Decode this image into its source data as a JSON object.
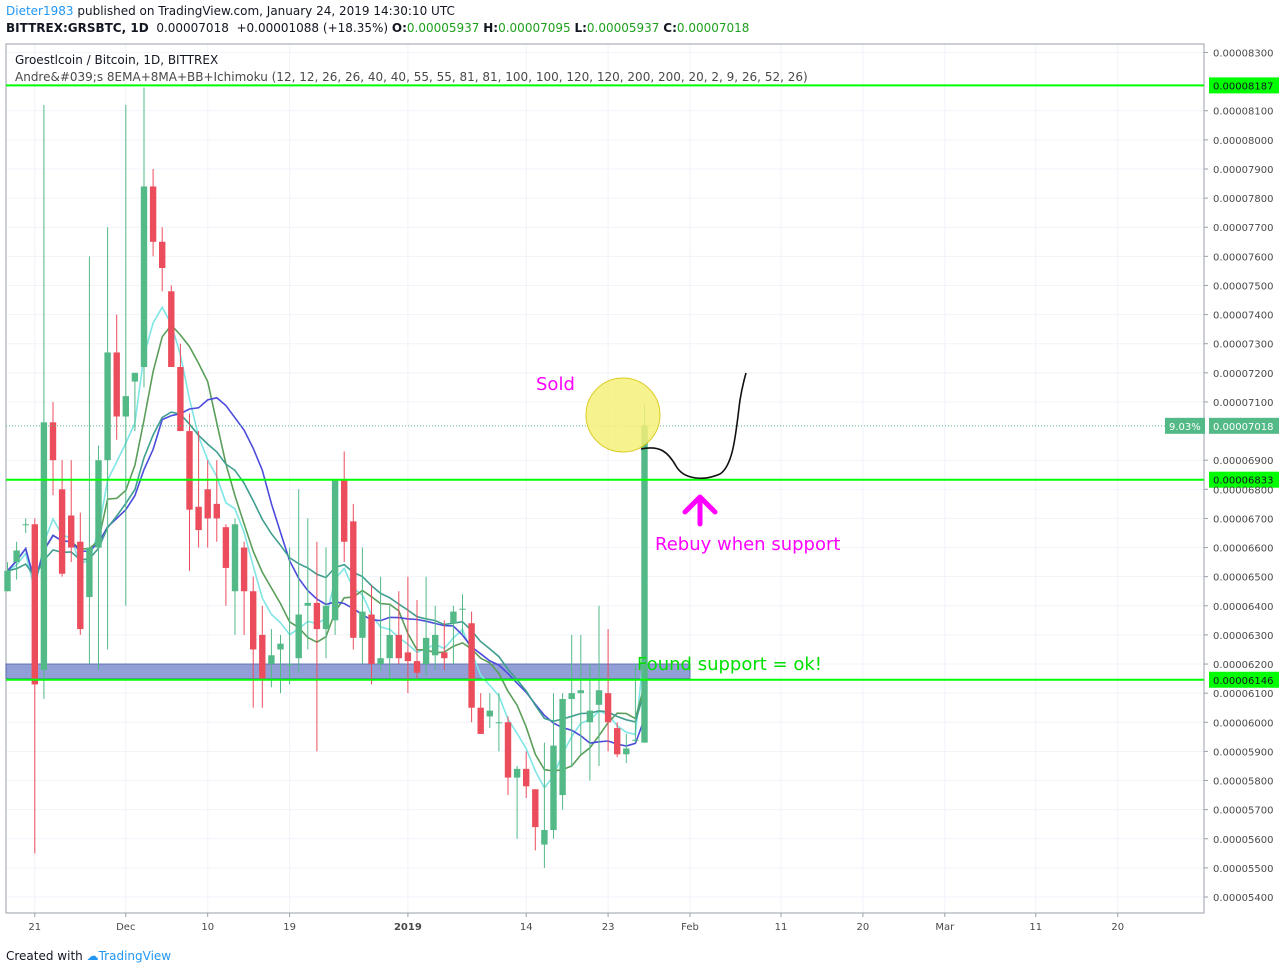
{
  "header": {
    "user": "Dieter1983",
    "published_text": "published on TradingView.com, January 24, 2019 14:30:10 UTC",
    "symbol": "BITTREX:GRSBTC, 1D",
    "last": "0.00007018",
    "change": "+0.00001088 (+18.35%)",
    "o_label": "O:",
    "o_value": "0.00005937",
    "h_label": "H:",
    "h_value": "0.00007095",
    "l_label": "L:",
    "l_value": "0.00005937",
    "c_label": "C:",
    "c_value": "0.00007018"
  },
  "legend": {
    "title": "Groestlcoin / Bitcoin, 1D, BITTREX",
    "indicator": "Andre&#039;s 8EMA+8MA+BB+Ichimoku (12, 12, 26, 26, 40, 40, 55, 55, 81, 81, 100, 100, 120, 120, 200, 200, 20, 2, 9, 26, 52, 26)"
  },
  "footer": {
    "created_with": "Created with",
    "brand": "TradingView"
  },
  "colors": {
    "up": "#53b987",
    "down": "#eb4d5c",
    "support_line": "#00ff00",
    "ema_fast": "#7fe5e5",
    "ema_mid": "#5a9e5a",
    "ma_blue": "#4b4bdc",
    "ma_teal": "#3f9e8f",
    "annotation_magenta": "#ff00ff",
    "annotation_green": "#00e000",
    "circle_fill": "#f5f07a",
    "zone_fill": "#7f8fd0"
  },
  "chart_data": {
    "type": "candlestick",
    "y_axis": {
      "range": [
        5.36e-05,
        8.37e-05
      ],
      "ticks": [
        "0.00008300",
        "0.00008100",
        "0.00008000",
        "0.00007900",
        "0.00007800",
        "0.00007700",
        "0.00007600",
        "0.00007500",
        "0.00007400",
        "0.00007300",
        "0.00007200",
        "0.00007100",
        "0.00006900",
        "0.00006800",
        "0.00006700",
        "0.00006600",
        "0.00006500",
        "0.00006400",
        "0.00006300",
        "0.00006200",
        "0.00006100",
        "0.00006000",
        "0.00005900",
        "0.00005800",
        "0.00005700",
        "0.00005600",
        "0.00005500",
        "0.00005400"
      ],
      "tick_values": [
        8.3e-05,
        8.1e-05,
        8e-05,
        7.9e-05,
        7.8e-05,
        7.7e-05,
        7.6e-05,
        7.5e-05,
        7.4e-05,
        7.3e-05,
        7.2e-05,
        7.1e-05,
        6.9e-05,
        6.8e-05,
        6.7e-05,
        6.6e-05,
        6.5e-05,
        6.4e-05,
        6.3e-05,
        6.2e-05,
        6.1e-05,
        6e-05,
        5.9e-05,
        5.8e-05,
        5.7e-05,
        5.6e-05,
        5.5e-05,
        5.4e-05
      ]
    },
    "x_axis": {
      "ticks": [
        {
          "label": "21",
          "index": 3
        },
        {
          "label": "Dec",
          "index": 13,
          "bold": false
        },
        {
          "label": "10",
          "index": 22
        },
        {
          "label": "19",
          "index": 31
        },
        {
          "label": "2019",
          "index": 44,
          "bold": true
        },
        {
          "label": "14",
          "index": 57
        },
        {
          "label": "23",
          "index": 66
        },
        {
          "label": "Feb",
          "index": 75
        },
        {
          "label": "11",
          "index": 85
        },
        {
          "label": "20",
          "index": 94
        },
        {
          "label": "Mar",
          "index": 103
        },
        {
          "label": "11",
          "index": 113
        },
        {
          "label": "20",
          "index": 122
        }
      ]
    },
    "price_labels": [
      {
        "text": "0.00008187",
        "value": 8.187e-05,
        "kind": "line"
      },
      {
        "text": "0.00006833",
        "value": 6.833e-05,
        "kind": "line"
      },
      {
        "text": "0.00006146",
        "value": 6.146e-05,
        "kind": "line"
      },
      {
        "text": "0.00007018",
        "value": 7.018e-05,
        "kind": "last",
        "pct": "9.03%"
      }
    ],
    "candles": [
      [
        6.45e-05,
        6.55e-05,
        6.45e-05,
        6.52e-05
      ],
      [
        6.55e-05,
        6.62e-05,
        6.49e-05,
        6.59e-05
      ],
      [
        6.68e-05,
        6.7e-05,
        6.65e-05,
        6.68e-05
      ],
      [
        6.68e-05,
        6.7e-05,
        5.55e-05,
        6.13e-05
      ],
      [
        6.18e-05,
        8.12e-05,
        6.08e-05,
        7.03e-05
      ],
      [
        7.03e-05,
        7.1e-05,
        6.78e-05,
        6.9e-05
      ],
      [
        6.8e-05,
        6.9e-05,
        6.5e-05,
        6.51e-05
      ],
      [
        6.71e-05,
        6.9e-05,
        6.55e-05,
        6.6e-05
      ],
      [
        6.62e-05,
        6.72e-05,
        6.3e-05,
        6.32e-05
      ],
      [
        6.43e-05,
        7.6e-05,
        6.2e-05,
        6.6e-05
      ],
      [
        6.6e-05,
        6.95e-05,
        6.18e-05,
        6.9e-05
      ],
      [
        6.9e-05,
        7.7e-05,
        6.25e-05,
        7.27e-05
      ],
      [
        7.27e-05,
        7.4e-05,
        6.97e-05,
        7.05e-05
      ],
      [
        7.05e-05,
        8.12e-05,
        6.4e-05,
        7.12e-05
      ],
      [
        7.17e-05,
        7.2e-05,
        7e-05,
        7.2e-05
      ],
      [
        7.22e-05,
        8.18e-05,
        7.15e-05,
        7.84e-05
      ],
      [
        7.84e-05,
        7.9e-05,
        7.6e-05,
        7.65e-05
      ],
      [
        7.65e-05,
        7.7e-05,
        7.48e-05,
        7.56e-05
      ],
      [
        7.48e-05,
        7.5e-05,
        7.22e-05,
        7.22e-05
      ],
      [
        7.22e-05,
        7.3e-05,
        7e-05,
        7e-05
      ],
      [
        7e-05,
        7.06e-05,
        6.52e-05,
        6.73e-05
      ],
      [
        6.74e-05,
        7e-05,
        6.6e-05,
        6.66e-05
      ],
      [
        6.8e-05,
        6.9e-05,
        6.6e-05,
        6.7e-05
      ],
      [
        6.75e-05,
        6.9e-05,
        6.62e-05,
        6.7e-05
      ],
      [
        6.67e-05,
        6.68e-05,
        6.4e-05,
        6.53e-05
      ],
      [
        6.45e-05,
        6.7e-05,
        6.3e-05,
        6.68e-05
      ],
      [
        6.6e-05,
        6.62e-05,
        6.3e-05,
        6.45e-05
      ],
      [
        6.45e-05,
        6.5e-05,
        6.05e-05,
        6.25e-05
      ],
      [
        6.3e-05,
        6.4e-05,
        6.05e-05,
        6.15e-05
      ],
      [
        6.2e-05,
        6.32e-05,
        6.12e-05,
        6.23e-05
      ],
      [
        6.25e-05,
        6.3e-05,
        6.1e-05,
        6.27e-05
      ],
      [
        6.2e-05,
        6.6e-05,
        6.13e-05,
        6.2e-05
      ],
      [
        6.22e-05,
        6.8e-05,
        6.17e-05,
        6.37e-05
      ],
      [
        6.4e-05,
        6.7e-05,
        6.25e-05,
        6.41e-05
      ],
      [
        6.41e-05,
        6.62e-05,
        5.9e-05,
        6.32e-05
      ],
      [
        6.32e-05,
        6.6e-05,
        6.22e-05,
        6.4e-05
      ],
      [
        6.35e-05,
        6.83e-05,
        6.3e-05,
        6.83e-05
      ],
      [
        6.83e-05,
        6.93e-05,
        6.55e-05,
        6.62e-05
      ],
      [
        6.69e-05,
        6.75e-05,
        6.25e-05,
        6.29e-05
      ],
      [
        6.29e-05,
        6.6e-05,
        6.2e-05,
        6.38e-05
      ],
      [
        6.37e-05,
        6.47e-05,
        6.13e-05,
        6.2e-05
      ],
      [
        6.2e-05,
        6.5e-05,
        6.18e-05,
        6.22e-05
      ],
      [
        6.22e-05,
        6.4e-05,
        6.15e-05,
        6.3e-05
      ],
      [
        6.3e-05,
        6.45e-05,
        6.2e-05,
        6.22e-05
      ],
      [
        6.24e-05,
        6.5e-05,
        6.1e-05,
        6.21e-05
      ],
      [
        6.21e-05,
        6.42e-05,
        6.15e-05,
        6.17e-05
      ],
      [
        6.2e-05,
        6.5e-05,
        6.16e-05,
        6.29e-05
      ],
      [
        6.23e-05,
        6.4e-05,
        6.18e-05,
        6.3e-05
      ],
      [
        6.24e-05,
        6.35e-05,
        6.18e-05,
        6.22e-05
      ],
      [
        6.34e-05,
        6.4e-05,
        6.2e-05,
        6.38e-05
      ],
      [
        6.39e-05,
        6.44e-05,
        6.3e-05,
        6.39e-05
      ],
      [
        6.34e-05,
        6.38e-05,
        6e-05,
        6.05e-05
      ],
      [
        6.05e-05,
        6.1e-05,
        5.96e-05,
        5.96e-05
      ],
      [
        6.02e-05,
        6.1e-05,
        5.98e-05,
        6.04e-05
      ],
      [
        6e-05,
        6.1e-05,
        5.9e-05,
        6e-05
      ],
      [
        6e-05,
        6.02e-05,
        5.75e-05,
        5.81e-05
      ],
      [
        5.81e-05,
        5.85e-05,
        5.6e-05,
        5.84e-05
      ],
      [
        5.84e-05,
        5.9e-05,
        5.74e-05,
        5.78e-05
      ],
      [
        5.77e-05,
        5.77e-05,
        5.56e-05,
        5.64e-05
      ],
      [
        5.58e-05,
        5.93e-05,
        5.5e-05,
        5.63e-05
      ],
      [
        5.63e-05,
        6.1e-05,
        5.6e-05,
        5.92e-05
      ],
      [
        5.75e-05,
        6.1e-05,
        5.7e-05,
        6.08e-05
      ],
      [
        6.08e-05,
        6.3e-05,
        5.85e-05,
        6.1e-05
      ],
      [
        6.1e-05,
        6.3e-05,
        5.89e-05,
        6.11e-05
      ],
      [
        6e-05,
        6.2e-05,
        5.8e-05,
        6.04e-05
      ],
      [
        6.06e-05,
        6.4e-05,
        5.85e-05,
        6.11e-05
      ],
      [
        6.1e-05,
        6.32e-05,
        5.9e-05,
        6e-05
      ],
      [
        5.98e-05,
        6e-05,
        5.88e-05,
        5.89e-05
      ],
      [
        5.89e-05,
        5.96e-05,
        5.86e-05,
        5.91e-05
      ],
      [
        5.94e-05,
        6.2e-05,
        5.93e-05,
        5.94e-05
      ],
      [
        5.93e-05,
        7.09e-05,
        5.93e-05,
        7.02e-05
      ]
    ]
  },
  "annotations": {
    "sold": "Sold",
    "rebuy": "Rebuy when support",
    "found": "Found support = ok!"
  }
}
